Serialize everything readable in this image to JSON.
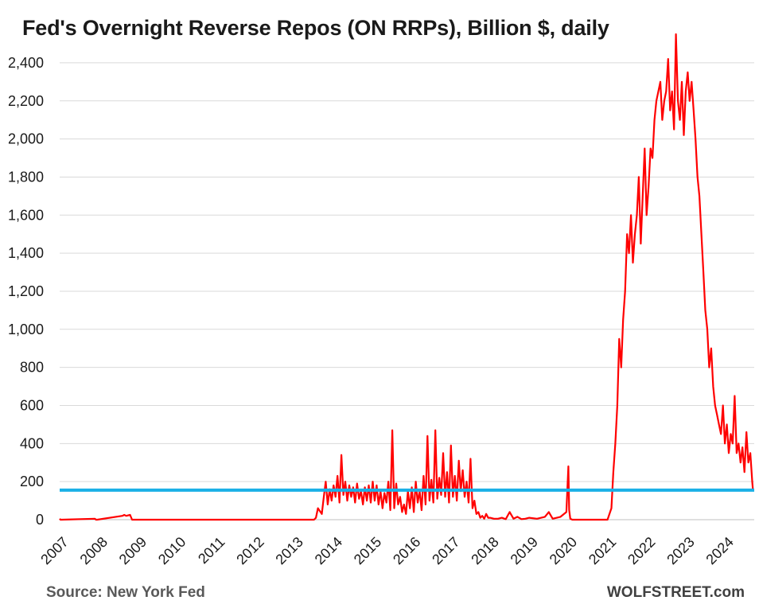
{
  "chart_data": {
    "type": "line",
    "title": "Fed's Overnight Reverse Repos (ON RRPs), Billion $, daily",
    "xlabel": "",
    "ylabel": "",
    "ylim": [
      0,
      2500
    ],
    "yticks": [
      0,
      200,
      400,
      600,
      800,
      1000,
      1200,
      1400,
      1600,
      1800,
      2000,
      2200,
      2400
    ],
    "ytick_labels": [
      "0",
      "200",
      "400",
      "600",
      "800",
      "1,000",
      "1,200",
      "1,400",
      "1,600",
      "1,800",
      "2,000",
      "2,200",
      "2,400"
    ],
    "xlim": [
      2007,
      2024.75
    ],
    "xtick_labels": [
      "2007",
      "2008",
      "2009",
      "2010",
      "2011",
      "2012",
      "2013",
      "2014",
      "2015",
      "2016",
      "2017",
      "2018",
      "2019",
      "2020",
      "2021",
      "2022",
      "2023",
      "2024"
    ],
    "grid": "horizontal",
    "series": [
      {
        "color": "#ff0000",
        "x": [
          2007.0,
          2007.02,
          2007.05,
          2007.9,
          2007.93,
          2007.96,
          2008.6,
          2008.65,
          2008.7,
          2008.8,
          2008.85,
          2013.5,
          2013.55,
          2013.6,
          2013.7,
          2013.75,
          2013.8,
          2013.85,
          2013.9,
          2013.95,
          2014.0,
          2014.05,
          2014.1,
          2014.15,
          2014.2,
          2014.25,
          2014.3,
          2014.35,
          2014.4,
          2014.45,
          2014.5,
          2014.55,
          2014.6,
          2014.65,
          2014.7,
          2014.75,
          2014.8,
          2014.85,
          2014.9,
          2014.95,
          2015.0,
          2015.05,
          2015.1,
          2015.15,
          2015.2,
          2015.25,
          2015.3,
          2015.35,
          2015.4,
          2015.45,
          2015.5,
          2015.55,
          2015.6,
          2015.65,
          2015.7,
          2015.75,
          2015.8,
          2015.85,
          2015.9,
          2015.95,
          2016.0,
          2016.05,
          2016.1,
          2016.15,
          2016.2,
          2016.25,
          2016.3,
          2016.35,
          2016.4,
          2016.45,
          2016.5,
          2016.55,
          2016.6,
          2016.65,
          2016.7,
          2016.75,
          2016.8,
          2016.85,
          2016.9,
          2016.95,
          2017.0,
          2017.05,
          2017.1,
          2017.15,
          2017.2,
          2017.25,
          2017.3,
          2017.35,
          2017.4,
          2017.45,
          2017.5,
          2017.55,
          2017.6,
          2017.65,
          2017.7,
          2017.75,
          2017.8,
          2017.85,
          2017.9,
          2017.95,
          2018.0,
          2018.1,
          2018.2,
          2018.3,
          2018.4,
          2018.5,
          2018.6,
          2018.7,
          2018.8,
          2018.9,
          2019.0,
          2019.2,
          2019.4,
          2019.5,
          2019.6,
          2019.8,
          2019.95,
          2020.0,
          2020.02,
          2020.05,
          2020.1,
          2020.3,
          2020.5,
          2020.7,
          2020.9,
          2021.0,
          2021.1,
          2021.15,
          2021.2,
          2021.25,
          2021.3,
          2021.35,
          2021.4,
          2021.45,
          2021.5,
          2021.55,
          2021.6,
          2021.65,
          2021.7,
          2021.75,
          2021.8,
          2021.85,
          2021.9,
          2021.95,
          2022.0,
          2022.05,
          2022.1,
          2022.15,
          2022.2,
          2022.25,
          2022.3,
          2022.35,
          2022.4,
          2022.45,
          2022.5,
          2022.55,
          2022.6,
          2022.65,
          2022.7,
          2022.75,
          2022.8,
          2022.85,
          2022.9,
          2022.95,
          2023.0,
          2023.05,
          2023.1,
          2023.15,
          2023.2,
          2023.25,
          2023.3,
          2023.35,
          2023.4,
          2023.45,
          2023.5,
          2023.55,
          2023.6,
          2023.65,
          2023.7,
          2023.75,
          2023.8,
          2023.85,
          2023.9,
          2023.95,
          2024.0,
          2024.05,
          2024.1,
          2024.15,
          2024.2,
          2024.25,
          2024.3,
          2024.35,
          2024.4,
          2024.45,
          2024.5,
          2024.55,
          2024.6,
          2024.65,
          2024.7,
          2024.72
        ],
        "values": [
          5,
          0,
          0,
          5,
          0,
          0,
          20,
          25,
          20,
          25,
          0,
          0,
          10,
          60,
          30,
          120,
          200,
          80,
          160,
          100,
          180,
          120,
          230,
          90,
          340,
          130,
          200,
          100,
          180,
          120,
          170,
          90,
          190,
          110,
          150,
          80,
          170,
          100,
          180,
          90,
          200,
          100,
          180,
          80,
          150,
          60,
          140,
          90,
          200,
          50,
          470,
          60,
          190,
          80,
          120,
          40,
          80,
          30,
          150,
          60,
          170,
          40,
          200,
          90,
          150,
          50,
          230,
          80,
          440,
          100,
          210,
          90,
          470,
          110,
          220,
          130,
          350,
          120,
          250,
          90,
          390,
          120,
          230,
          100,
          310,
          150,
          260,
          120,
          200,
          90,
          320,
          60,
          100,
          30,
          40,
          10,
          20,
          5,
          30,
          10,
          10,
          5,
          5,
          10,
          3,
          40,
          5,
          15,
          3,
          5,
          10,
          5,
          15,
          40,
          5,
          15,
          40,
          280,
          50,
          5,
          0,
          0,
          0,
          0,
          0,
          0,
          60,
          250,
          400,
          600,
          950,
          800,
          1050,
          1200,
          1500,
          1400,
          1600,
          1350,
          1500,
          1600,
          1800,
          1450,
          1700,
          1950,
          1600,
          1750,
          1950,
          1900,
          2100,
          2200,
          2250,
          2300,
          2100,
          2200,
          2250,
          2420,
          2150,
          2250,
          2050,
          2550,
          2200,
          2100,
          2300,
          2020,
          2250,
          2350,
          2200,
          2300,
          2150,
          2000,
          1800,
          1700,
          1500,
          1300,
          1100,
          1000,
          800,
          900,
          700,
          600,
          550,
          500,
          450,
          600,
          400,
          500,
          350,
          450,
          400,
          650,
          350,
          400,
          300,
          380,
          250,
          460,
          300,
          350,
          200,
          150
        ]
      }
    ],
    "reference_line": {
      "y": 155,
      "color": "#1ab0e6"
    },
    "gridline_color": "#d9d9d9"
  },
  "footer": {
    "source": "Source: New York Fed",
    "watermark": "WOLFSTREET.com"
  }
}
